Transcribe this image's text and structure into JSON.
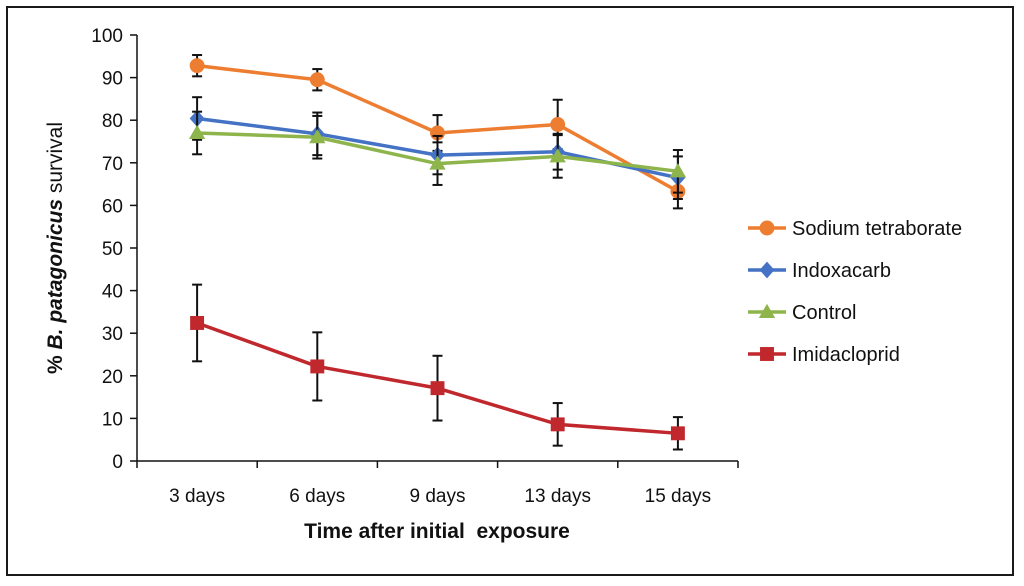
{
  "chart_data": {
    "type": "line",
    "title": "",
    "xlabel": "Time after initial  exposure",
    "ylabel": {
      "prefix": "% ",
      "italic": "B. patagonicus",
      "suffix": " survival"
    },
    "categories": [
      "3 days",
      "6 days",
      "9 days",
      "13 days",
      "15 days"
    ],
    "ylim": [
      0,
      100
    ],
    "yticks": [
      0,
      10,
      20,
      30,
      40,
      50,
      60,
      70,
      80,
      90,
      100
    ],
    "grid": false,
    "legend_position": "right",
    "series": [
      {
        "name": "Sodium tetraborate",
        "color": "#ED7D31",
        "marker": "circle",
        "values": [
          92.8,
          89.5,
          77.0,
          79.0,
          63.3
        ],
        "errors": [
          2.5,
          2.5,
          4.2,
          5.8,
          4.0
        ]
      },
      {
        "name": "Indoxacarb",
        "color": "#4472C4",
        "marker": "diamond",
        "values": [
          80.4,
          76.8,
          71.8,
          72.6,
          66.5
        ],
        "errors": [
          5.0,
          5.0,
          4.5,
          4.2,
          5.0
        ]
      },
      {
        "name": "Control",
        "color": "#8DB54B",
        "marker": "triangle",
        "values": [
          77.0,
          76.0,
          69.8,
          71.5,
          68.0
        ],
        "errors": [
          5.0,
          5.0,
          5.0,
          5.0,
          5.0
        ]
      },
      {
        "name": "Imidacloprid",
        "color": "#C0282D",
        "marker": "square",
        "values": [
          32.4,
          22.2,
          17.1,
          8.6,
          6.5
        ],
        "errors": [
          9.0,
          8.0,
          7.6,
          5.0,
          3.8
        ]
      }
    ]
  }
}
